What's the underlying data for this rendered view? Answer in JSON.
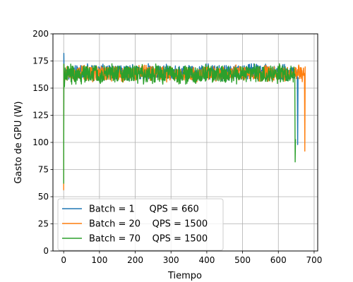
{
  "chart_data": {
    "type": "line",
    "xlabel": "Tiempo",
    "ylabel": "Gasto de GPU (W)",
    "xlim": [
      -30,
      710
    ],
    "ylim": [
      0,
      200
    ],
    "xticks": [
      0,
      100,
      200,
      300,
      400,
      500,
      600,
      700
    ],
    "yticks": [
      0,
      25,
      50,
      75,
      100,
      125,
      150,
      175,
      200
    ],
    "grid": true,
    "legend_position": "lower-left",
    "series": [
      {
        "name": "Batch = 1     QPS = 660",
        "color": "#1f77b4",
        "duration": 655,
        "start_min": 75,
        "start_peak": 182,
        "steady_low": 157,
        "steady_high": 172,
        "end_dip": 98,
        "end_value": 160
      },
      {
        "name": "Batch = 20    QPS = 1500",
        "color": "#ff7f0e",
        "duration": 675,
        "start_min": 56,
        "start_peak": 172,
        "steady_low": 156,
        "steady_high": 171,
        "end_dip": 92,
        "end_value": 170
      },
      {
        "name": "Batch = 70    QPS = 1500",
        "color": "#2ca02c",
        "duration": 648,
        "start_min": 62,
        "start_peak": 172,
        "steady_low": 154,
        "steady_high": 172,
        "end_dip": 82,
        "end_value": 103
      }
    ]
  }
}
